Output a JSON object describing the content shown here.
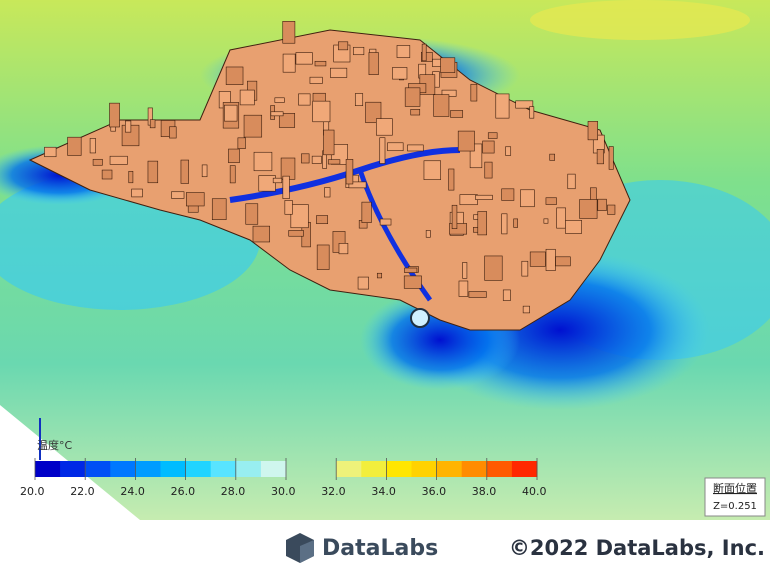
{
  "legend": {
    "label": "温度°C",
    "ticks": [
      "20.0",
      "22.0",
      "24.0",
      "26.0",
      "28.0",
      "30.0",
      "32.0",
      "34.0",
      "36.0",
      "38.0",
      "40.0"
    ],
    "colors": [
      "#0000c8",
      "#0028e6",
      "#0050f5",
      "#0078ff",
      "#009cff",
      "#00bcff",
      "#20d4ff",
      "#58e4ff",
      "#98eef0",
      "#cff6ee",
      null,
      null,
      "#eef27a",
      "#f2ee3c",
      "#ffe600",
      "#ffd200",
      "#ffb400",
      "#ff8c00",
      "#ff5a00",
      "#ff2800"
    ]
  },
  "section": {
    "title": "断面位置",
    "value": "Z=0.251"
  },
  "footer": {
    "brand": "DataLabs",
    "copyright": "©2022 DataLabs, Inc."
  }
}
